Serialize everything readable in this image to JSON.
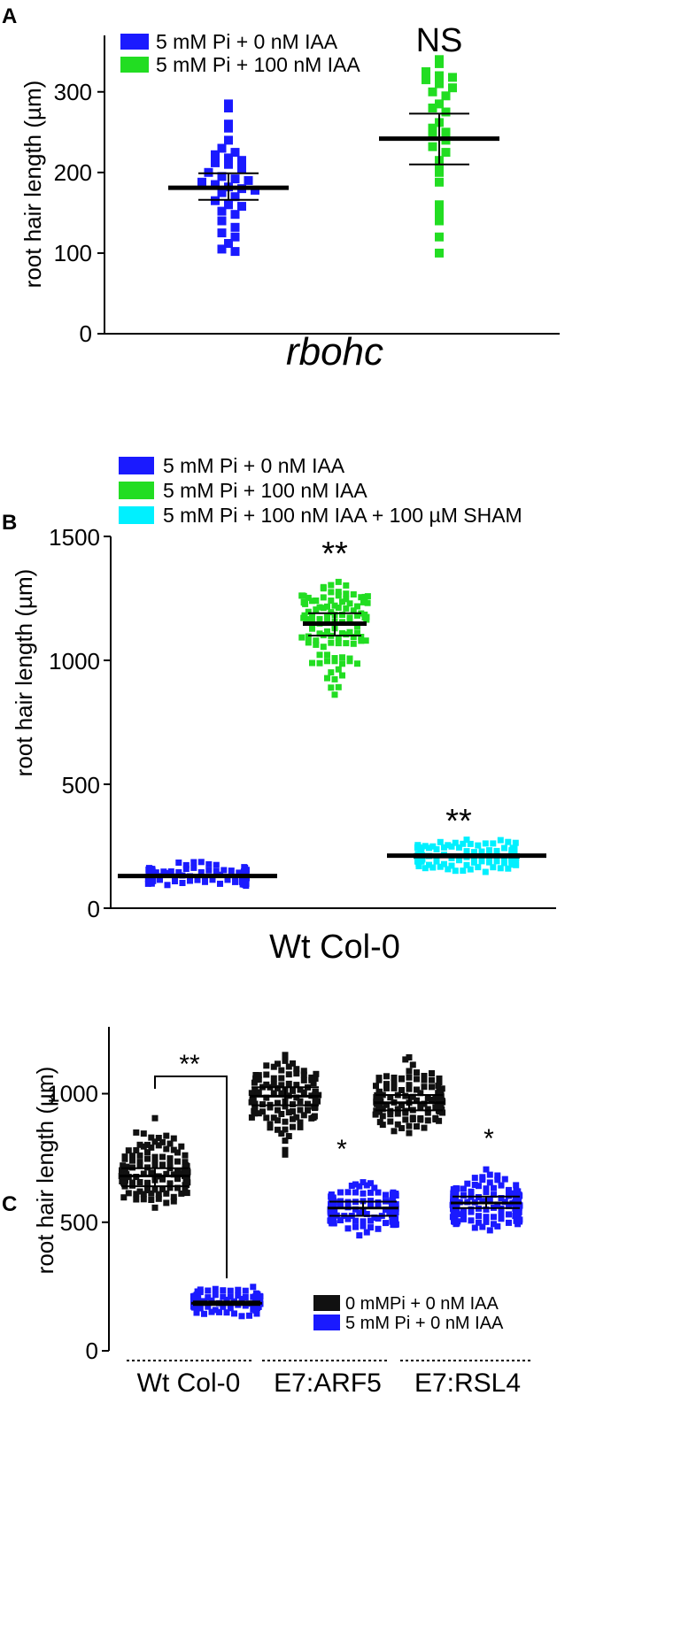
{
  "chart_data": [
    {
      "panel": "A",
      "type": "scatter",
      "xlabel": "rbohc",
      "ylabel": "root hair length (µm)",
      "ylim": [
        0,
        370
      ],
      "yticks": [
        0,
        100,
        200,
        300
      ],
      "legend": [
        {
          "label": "5 mM Pi + 0 nM IAA",
          "color": "#1a1aff"
        },
        {
          "label": "5 mM Pi + 100 nM IAA",
          "color": "#22dd22"
        }
      ],
      "series": [
        {
          "name": "5 mM Pi + 0 nM IAA",
          "color": "#1a1aff",
          "mean": 181,
          "sem_low": 166,
          "sem_high": 199,
          "values": [
            285,
            280,
            260,
            255,
            240,
            230,
            225,
            222,
            218,
            215,
            212,
            210,
            205,
            200,
            195,
            192,
            190,
            188,
            185,
            182,
            180,
            178,
            175,
            170,
            165,
            160,
            158,
            152,
            148,
            140,
            132,
            125,
            120,
            112,
            105,
            102
          ]
        },
        {
          "name": "5 mM Pi + 100 nM IAA",
          "color": "#22dd22",
          "mean": 242,
          "sem_low": 210,
          "sem_high": 273,
          "values": [
            340,
            335,
            325,
            320,
            318,
            315,
            310,
            305,
            300,
            295,
            285,
            280,
            275,
            262,
            255,
            250,
            245,
            240,
            232,
            225,
            215,
            210,
            200,
            188,
            160,
            150,
            140,
            120,
            100
          ]
        }
      ],
      "annotations": [
        {
          "text": "NS",
          "series": 1
        }
      ]
    },
    {
      "panel": "B",
      "type": "scatter",
      "xlabel": "Wt Col-0",
      "ylabel": "root hair length (µm)",
      "ylim": [
        0,
        1500
      ],
      "yticks": [
        0,
        500,
        1000,
        1500
      ],
      "legend": [
        {
          "label": "5 mM Pi + 0 nM IAA",
          "color": "#1a1aff"
        },
        {
          "label": "5 mM Pi + 100 nM IAA",
          "color": "#22dd22"
        },
        {
          "label": "5 mM Pi + 100 nM IAA + 100 µM SHAM",
          "color": "#00f0ff"
        }
      ],
      "series": [
        {
          "name": "5 mM Pi + 0 nM IAA",
          "color": "#1a1aff",
          "mean": 130,
          "sem_low": 125,
          "sem_high": 135,
          "n": 130,
          "min": 80,
          "max": 205
        },
        {
          "name": "5 mM Pi + 100 nM IAA",
          "color": "#22dd22",
          "mean": 1148,
          "sem_low": 1100,
          "sem_high": 1190,
          "n": 110,
          "min": 805,
          "max": 1380
        },
        {
          "name": "5 mM Pi + 100 nM IAA + 100 µM SHAM",
          "color": "#00f0ff",
          "mean": 212,
          "sem_low": 205,
          "sem_high": 218,
          "n": 120,
          "min": 130,
          "max": 315
        }
      ],
      "annotations": [
        {
          "text": "**",
          "series": 1
        },
        {
          "text": "**",
          "series": 2
        }
      ]
    },
    {
      "panel": "C",
      "type": "scatter",
      "ylabel": "root hair length (µm)",
      "ylim": [
        0,
        1260
      ],
      "yticks": [
        0,
        500,
        1000
      ],
      "categories": [
        "Wt Col-0",
        "E7:ARF5",
        "E7:RSL4"
      ],
      "legend": [
        {
          "label": "0 mMPi + 0 nM IAA",
          "color": "#111111"
        },
        {
          "label": "5 mM Pi + 0 nM IAA",
          "color": "#1a1aff"
        }
      ],
      "series": [
        {
          "name": "0 mMPi + 0 nM IAA",
          "color": "#111111",
          "groups": [
            {
              "category": "Wt Col-0",
              "mean": 680,
              "sem_low": 640,
              "sem_high": 710,
              "n": 130,
              "min": 550,
              "max": 950
            },
            {
              "category": "E7:ARF5",
              "mean": 990,
              "sem_low": 955,
              "sem_high": 1025,
              "n": 110,
              "min": 745,
              "max": 1205
            },
            {
              "category": "E7:RSL4",
              "mean": 965,
              "sem_low": 935,
              "sem_high": 995,
              "n": 120,
              "min": 785,
              "max": 1175
            }
          ]
        },
        {
          "name": "5 mM Pi + 0 nM IAA",
          "color": "#1a1aff",
          "groups": [
            {
              "category": "Wt Col-0",
              "mean": 185,
              "sem_low": 178,
              "sem_high": 192,
              "n": 110,
              "min": 120,
              "max": 265
            },
            {
              "category": "E7:ARF5",
              "mean": 555,
              "sem_low": 525,
              "sem_high": 580,
              "n": 130,
              "min": 420,
              "max": 700
            },
            {
              "category": "E7:RSL4",
              "mean": 575,
              "sem_low": 555,
              "sem_high": 600,
              "n": 150,
              "min": 450,
              "max": 720
            }
          ]
        }
      ],
      "annotations": [
        {
          "text": "**",
          "between": [
            "0 mMPi Wt Col-0",
            "5 mM Pi Wt Col-0"
          ]
        },
        {
          "text": "*",
          "category": "E7:ARF5"
        },
        {
          "text": "*",
          "category": "E7:RSL4"
        }
      ]
    }
  ]
}
